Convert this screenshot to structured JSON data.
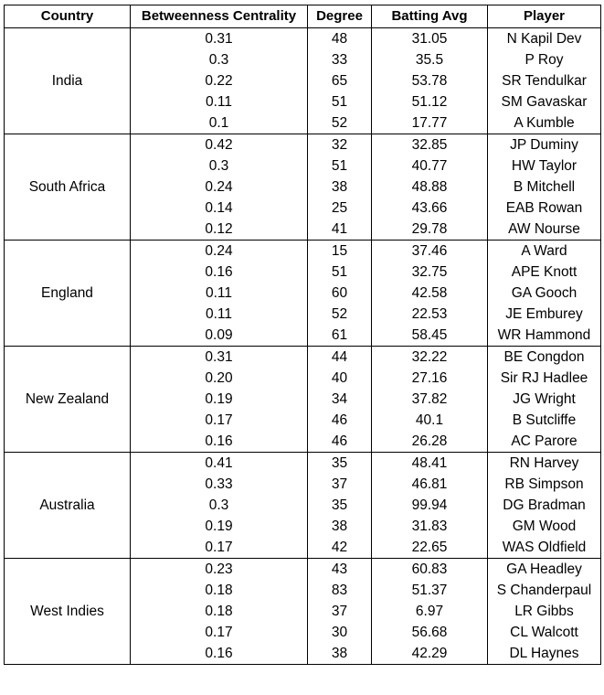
{
  "table": {
    "headers": [
      "Country",
      "Betweenness Centrality",
      "Degree",
      "Batting Avg",
      "Player"
    ],
    "groups": [
      {
        "country": "India",
        "rows": [
          [
            "0.31",
            "48",
            "31.05",
            "N Kapil Dev"
          ],
          [
            "0.3",
            "33",
            "35.5",
            "P Roy"
          ],
          [
            "0.22",
            "65",
            "53.78",
            "SR Tendulkar"
          ],
          [
            "0.11",
            "51",
            "51.12",
            "SM Gavaskar"
          ],
          [
            "0.1",
            "52",
            "17.77",
            "A Kumble"
          ]
        ]
      },
      {
        "country": "South Africa",
        "rows": [
          [
            "0.42",
            "32",
            "32.85",
            "JP Duminy"
          ],
          [
            "0.3",
            "51",
            "40.77",
            "HW Taylor"
          ],
          [
            "0.24",
            "38",
            "48.88",
            "B Mitchell"
          ],
          [
            "0.14",
            "25",
            "43.66",
            "EAB Rowan"
          ],
          [
            "0.12",
            "41",
            "29.78",
            "AW Nourse"
          ]
        ]
      },
      {
        "country": "England",
        "rows": [
          [
            "0.24",
            "15",
            "37.46",
            "A Ward"
          ],
          [
            "0.16",
            "51",
            "32.75",
            "APE Knott"
          ],
          [
            "0.11",
            "60",
            "42.58",
            "GA Gooch"
          ],
          [
            "0.11",
            "52",
            "22.53",
            "JE Emburey"
          ],
          [
            "0.09",
            "61",
            "58.45",
            "WR Hammond"
          ]
        ]
      },
      {
        "country": "New Zealand",
        "rows": [
          [
            "0.31",
            "44",
            "32.22",
            "BE Congdon"
          ],
          [
            "0.20",
            "40",
            "27.16",
            "Sir RJ Hadlee"
          ],
          [
            "0.19",
            "34",
            "37.82",
            "JG Wright"
          ],
          [
            "0.17",
            "46",
            "40.1",
            "B Sutcliffe"
          ],
          [
            "0.16",
            "46",
            "26.28",
            "AC Parore"
          ]
        ]
      },
      {
        "country": "Australia",
        "rows": [
          [
            "0.41",
            "35",
            "48.41",
            "RN Harvey"
          ],
          [
            "0.33",
            "37",
            "46.81",
            "RB Simpson"
          ],
          [
            "0.3",
            "35",
            "99.94",
            "DG Bradman"
          ],
          [
            "0.19",
            "38",
            "31.83",
            "GM Wood"
          ],
          [
            "0.17",
            "42",
            "22.65",
            "WAS Oldfield"
          ]
        ]
      },
      {
        "country": "West Indies",
        "rows": [
          [
            "0.23",
            "43",
            "60.83",
            "GA Headley"
          ],
          [
            "0.18",
            "83",
            "51.37",
            "S Chanderpaul"
          ],
          [
            "0.18",
            "37",
            "6.97",
            "LR Gibbs"
          ],
          [
            "0.17",
            "30",
            "56.68",
            "CL Walcott"
          ],
          [
            "0.16",
            "38",
            "42.29",
            "DL Haynes"
          ]
        ]
      }
    ]
  }
}
